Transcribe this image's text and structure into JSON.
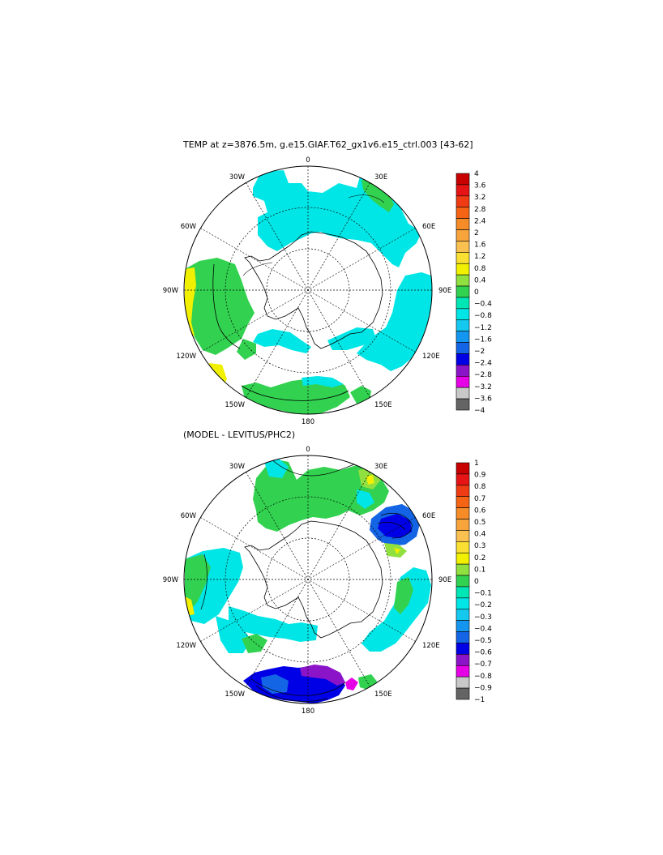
{
  "panels": [
    {
      "id": "top",
      "title": "TEMP at z=3876.5m, g.e15.GIAF.T62_gx1v6.e15_ctrl.003 [43-62]",
      "lon_labels": [
        "0",
        "30E",
        "60E",
        "90E",
        "120E",
        "150E",
        "180",
        "150W",
        "120W",
        "90W",
        "60W",
        "30W"
      ],
      "colorbar": {
        "labels": [
          "4",
          "3.6",
          "3.2",
          "2.8",
          "2.4",
          "2",
          "1.6",
          "1.2",
          "0.8",
          "0.4",
          "0",
          "−0.4",
          "−0.8",
          "−1.2",
          "−1.6",
          "−2",
          "−2.4",
          "−2.8",
          "−3.2",
          "−3.6",
          "−4"
        ],
        "colors": [
          "#c80000",
          "#e61414",
          "#f03c14",
          "#f56414",
          "#f58c28",
          "#f8a43c",
          "#fac050",
          "#fae032",
          "#f0f000",
          "#90e040",
          "#32d250",
          "#00e6b4",
          "#00e6e6",
          "#14c8f0",
          "#1496f0",
          "#1464e6",
          "#0000e6",
          "#8c14c8",
          "#e600e6",
          "#c8c8c8",
          "#646464"
        ]
      }
    },
    {
      "id": "bottom",
      "title": "(MODEL - LEVITUS/PHC2)",
      "lon_labels": [
        "0",
        "30E",
        "60E",
        "90E",
        "120E",
        "150E",
        "180",
        "150W",
        "120W",
        "90W",
        "60W",
        "30W"
      ],
      "colorbar": {
        "labels": [
          "1",
          "0.9",
          "0.8",
          "0.7",
          "0.6",
          "0.5",
          "0.4",
          "0.3",
          "0.2",
          "0.1",
          "0",
          "−0.1",
          "−0.2",
          "−0.3",
          "−0.4",
          "−0.5",
          "−0.6",
          "−0.7",
          "−0.8",
          "−0.9",
          "−1"
        ],
        "colors": [
          "#c80000",
          "#e61414",
          "#f03c14",
          "#f56414",
          "#f58c28",
          "#f8a43c",
          "#fac050",
          "#fae032",
          "#f0f000",
          "#90e040",
          "#32d250",
          "#00e6b4",
          "#00e6e6",
          "#14c8f0",
          "#1496f0",
          "#1464e6",
          "#0000e6",
          "#8c14c8",
          "#e600e6",
          "#c8c8c8",
          "#646464"
        ]
      }
    }
  ]
}
